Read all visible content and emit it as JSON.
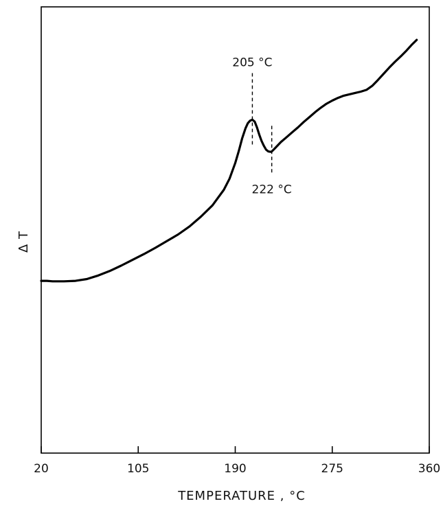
{
  "chart_data": {
    "type": "line",
    "title": "",
    "xlabel": "TEMPERATURE , °C",
    "ylabel": "Δ T",
    "xlim": [
      20,
      360
    ],
    "ylim": [
      0,
      100
    ],
    "xticks": [
      20,
      105,
      190,
      275,
      360
    ],
    "xtick_labels": [
      "20",
      "105",
      "190",
      "275",
      "360"
    ],
    "y_tick_labels": false,
    "grid": false,
    "legend": "none",
    "line_color": "#000000",
    "series": [
      {
        "x": [
          20,
          25,
          30,
          40,
          50,
          60,
          70,
          80,
          90,
          100,
          110,
          120,
          130,
          140,
          150,
          160,
          170,
          180,
          185,
          190,
          193,
          196,
          199,
          201,
          203,
          205,
          207,
          209,
          211,
          213,
          215,
          217,
          219,
          221,
          222,
          224,
          227,
          230,
          235,
          240,
          245,
          250,
          255,
          260,
          265,
          270,
          275,
          280,
          285,
          290,
          295,
          300,
          305,
          310,
          315,
          320,
          325,
          330,
          335,
          340,
          345,
          349
        ],
        "y": [
          38.6,
          38.6,
          38.5,
          38.5,
          38.6,
          39.0,
          39.8,
          40.8,
          42.0,
          43.3,
          44.6,
          46.0,
          47.5,
          49.0,
          50.8,
          53.0,
          55.5,
          59.0,
          61.5,
          65.0,
          67.6,
          70.5,
          72.8,
          73.9,
          74.5,
          74.7,
          74.3,
          73.0,
          71.4,
          70.0,
          68.9,
          68.0,
          67.6,
          67.5,
          67.6,
          68.1,
          68.9,
          69.7,
          70.8,
          71.9,
          73.0,
          74.2,
          75.3,
          76.4,
          77.4,
          78.3,
          79.0,
          79.6,
          80.1,
          80.4,
          80.7,
          81.0,
          81.4,
          82.3,
          83.6,
          85.0,
          86.4,
          87.7,
          88.9,
          90.2,
          91.6,
          92.6
        ]
      }
    ],
    "annotations": [
      {
        "text": "205 °C",
        "x": 205,
        "y": 74.7,
        "label_position": "above"
      },
      {
        "text": "222 °C",
        "x": 222,
        "y": 67.5,
        "label_position": "below"
      }
    ]
  }
}
